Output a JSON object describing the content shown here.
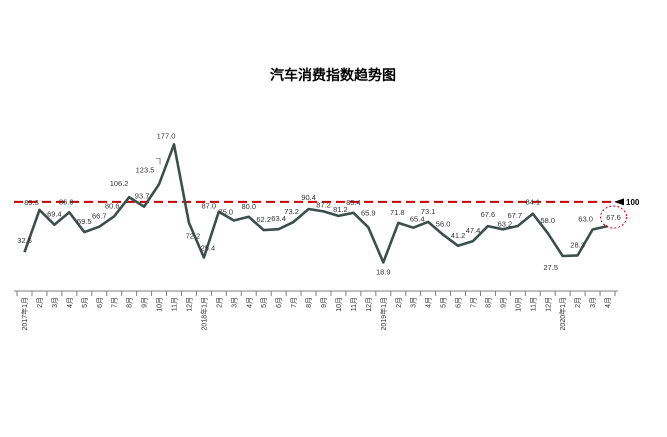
{
  "chart_data": {
    "type": "line",
    "title": "汽车消费指数趋势图",
    "xlabel": "",
    "ylabel": "",
    "categories": [
      "2017年1月",
      "2月",
      "3月",
      "4月",
      "5月",
      "6月",
      "7月",
      "8月",
      "9月",
      "10月",
      "11月",
      "12月",
      "2018年1月",
      "2月",
      "3月",
      "4月",
      "5月",
      "6月",
      "7月",
      "8月",
      "9月",
      "10月",
      "11月",
      "12月",
      "2019年1月",
      "2月",
      "3月",
      "4月",
      "5月",
      "6月",
      "7月",
      "8月",
      "9月",
      "10月",
      "11月",
      "12月",
      "2020年1月",
      "2月",
      "3月",
      "4月"
    ],
    "values": [
      32.6,
      89.3,
      69.4,
      86.0,
      59.5,
      66.7,
      80.6,
      106.2,
      93.7,
      123.5,
      177.0,
      72.2,
      25.4,
      87.0,
      75.0,
      80.0,
      62.2,
      63.4,
      73.2,
      90.4,
      87.2,
      81.2,
      85.4,
      65.9,
      18.9,
      71.8,
      65.4,
      73.1,
      56.0,
      41.2,
      47.4,
      67.6,
      63.2,
      67.7,
      84.1,
      58.0,
      27.5,
      28.3,
      63.0,
      67.6
    ],
    "data_labels": [
      "32.6",
      "89.3",
      "69.4",
      "86.0",
      "59.5",
      "66.7",
      "80.6",
      "106.2",
      "93.7",
      "123.5",
      "177.0",
      "72.2",
      "25.4",
      "87.0",
      "75.0",
      "80.0",
      "62.2",
      "63.4",
      "73.2",
      "90.4",
      "87.2",
      "81.2",
      "85.4",
      "65.9",
      "18.9",
      "71.8",
      "65.4",
      "73.1",
      "56.0",
      "41.2",
      "47.4",
      "67.6",
      "63.2",
      "67.7",
      "84.1",
      "58.0",
      "27.5",
      "28.3",
      "63.0",
      "67.6"
    ],
    "reference_line": {
      "value": 100,
      "label": "100",
      "color": "#c00000",
      "style": "dashed"
    },
    "highlight": {
      "index": 39,
      "color": "#c00000",
      "style": "dashed-ellipse"
    },
    "line_color": "#3d4f4b",
    "grid": false,
    "legend": "none"
  }
}
